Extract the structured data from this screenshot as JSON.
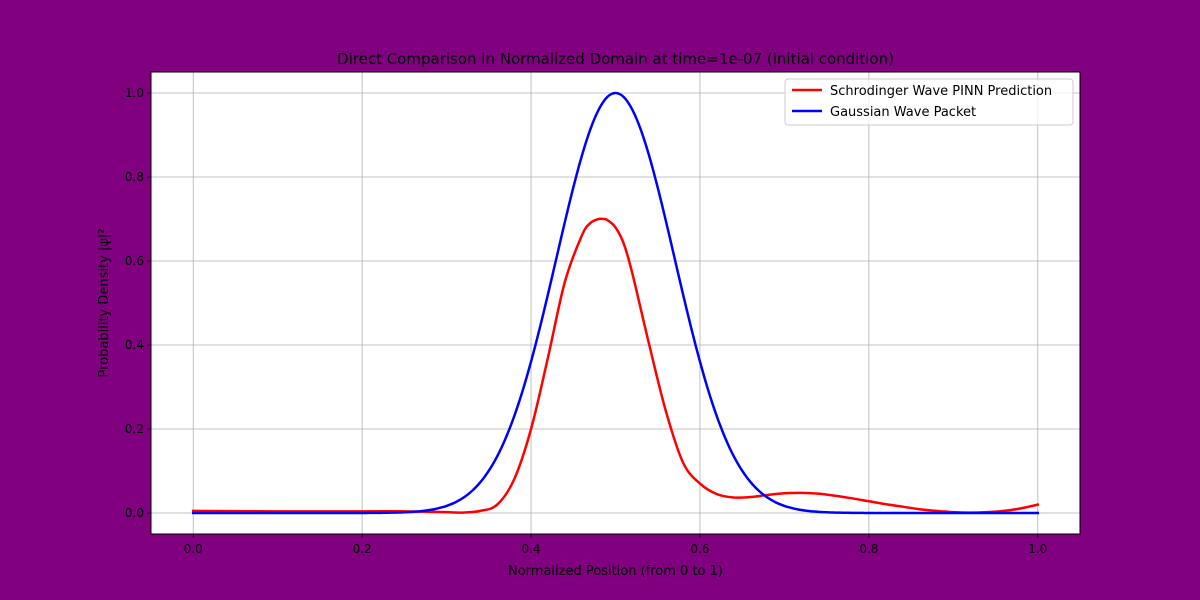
{
  "colors": {
    "figure_background": "#800080",
    "axes_background": "#ffffff",
    "grid": "#b0b0b0",
    "series_red": "#ff0000",
    "series_blue": "#0000ff"
  },
  "chart_data": {
    "type": "line",
    "title": "Direct Comparison in Normalized Domain at time=1e-07 (initial condition)",
    "xlabel": "Normalized Position (from 0 to 1)",
    "ylabel": "Probability Density |ψ|²",
    "xlim": [
      -0.05,
      1.05
    ],
    "ylim": [
      -0.05,
      1.05
    ],
    "xticks": [
      0.0,
      0.2,
      0.4,
      0.6,
      0.8,
      1.0
    ],
    "xtick_labels": [
      "0.0",
      "0.2",
      "0.4",
      "0.6",
      "0.8",
      "1.0"
    ],
    "yticks": [
      0.0,
      0.2,
      0.4,
      0.6,
      0.8,
      1.0
    ],
    "ytick_labels": [
      "0.0",
      "0.2",
      "0.4",
      "0.6",
      "0.8",
      "1.0"
    ],
    "grid": true,
    "legend_position": "top-right",
    "series": [
      {
        "name": "Schrodinger Wave PINN Prediction",
        "color": "#ff0000",
        "x": [
          0.0,
          0.1,
          0.2,
          0.25,
          0.28,
          0.3,
          0.32,
          0.34,
          0.36,
          0.38,
          0.4,
          0.42,
          0.44,
          0.46,
          0.47,
          0.48,
          0.485,
          0.49,
          0.5,
          0.51,
          0.52,
          0.54,
          0.56,
          0.58,
          0.6,
          0.62,
          0.64,
          0.66,
          0.68,
          0.7,
          0.72,
          0.74,
          0.76,
          0.78,
          0.8,
          0.82,
          0.84,
          0.86,
          0.88,
          0.9,
          0.92,
          0.94,
          0.96,
          0.98,
          1.0
        ],
        "y": [
          0.005,
          0.004,
          0.004,
          0.004,
          0.003,
          0.002,
          0.001,
          0.005,
          0.02,
          0.08,
          0.2,
          0.37,
          0.55,
          0.66,
          0.69,
          0.7,
          0.7,
          0.698,
          0.68,
          0.64,
          0.57,
          0.4,
          0.24,
          0.12,
          0.07,
          0.045,
          0.037,
          0.038,
          0.043,
          0.047,
          0.048,
          0.046,
          0.041,
          0.035,
          0.028,
          0.021,
          0.015,
          0.009,
          0.005,
          0.002,
          0.001,
          0.002,
          0.005,
          0.011,
          0.02
        ]
      },
      {
        "name": "Gaussian Wave Packet",
        "color": "#0000ff",
        "gaussian": {
          "amplitude": 1.0,
          "center": 0.5,
          "sigma": 0.07,
          "x_start": 0.0,
          "x_end": 1.0
        }
      }
    ]
  }
}
